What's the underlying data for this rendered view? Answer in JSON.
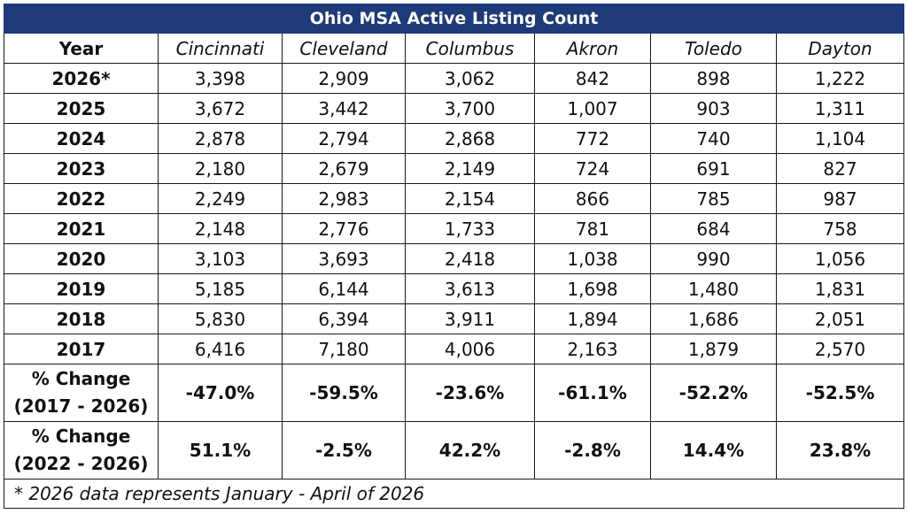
{
  "chart_data": {
    "type": "table",
    "title": "Ohio MSA Active Listing Count",
    "year_header": "Year",
    "columns": [
      "Cincinnati",
      "Cleveland",
      "Columbus",
      "Akron",
      "Toledo",
      "Dayton"
    ],
    "rows": [
      {
        "year": "2026*",
        "values": [
          "3,398",
          "2,909",
          "3,062",
          "842",
          "898",
          "1,222"
        ]
      },
      {
        "year": "2025",
        "values": [
          "3,672",
          "3,442",
          "3,700",
          "1,007",
          "903",
          "1,311"
        ]
      },
      {
        "year": "2024",
        "values": [
          "2,878",
          "2,794",
          "2,868",
          "772",
          "740",
          "1,104"
        ]
      },
      {
        "year": "2023",
        "values": [
          "2,180",
          "2,679",
          "2,149",
          "724",
          "691",
          "827"
        ]
      },
      {
        "year": "2022",
        "values": [
          "2,249",
          "2,983",
          "2,154",
          "866",
          "785",
          "987"
        ]
      },
      {
        "year": "2021",
        "values": [
          "2,148",
          "2,776",
          "1,733",
          "781",
          "684",
          "758"
        ]
      },
      {
        "year": "2020",
        "values": [
          "3,103",
          "3,693",
          "2,418",
          "1,038",
          "990",
          "1,056"
        ]
      },
      {
        "year": "2019",
        "values": [
          "5,185",
          "6,144",
          "3,613",
          "1,698",
          "1,480",
          "1,831"
        ]
      },
      {
        "year": "2018",
        "values": [
          "5,830",
          "6,394",
          "3,911",
          "1,894",
          "1,686",
          "2,051"
        ]
      },
      {
        "year": "2017",
        "values": [
          "6,416",
          "7,180",
          "4,006",
          "2,163",
          "1,879",
          "2,570"
        ]
      }
    ],
    "change_rows": [
      {
        "label_line1": "% Change",
        "label_line2": "(2017 - 2026)",
        "values": [
          "-47.0%",
          "-59.5%",
          "-23.6%",
          "-61.1%",
          "-52.2%",
          "-52.5%"
        ]
      },
      {
        "label_line1": "% Change",
        "label_line2": "(2022 - 2026)",
        "values": [
          "51.1%",
          "-2.5%",
          "42.2%",
          "-2.8%",
          "14.4%",
          "23.8%"
        ]
      }
    ],
    "footnote": "* 2026 data represents January - April of 2026"
  },
  "colors": {
    "header_background": "#1f3a79",
    "header_text": "#ffffff",
    "grid_lines": "#1a1a1a"
  }
}
